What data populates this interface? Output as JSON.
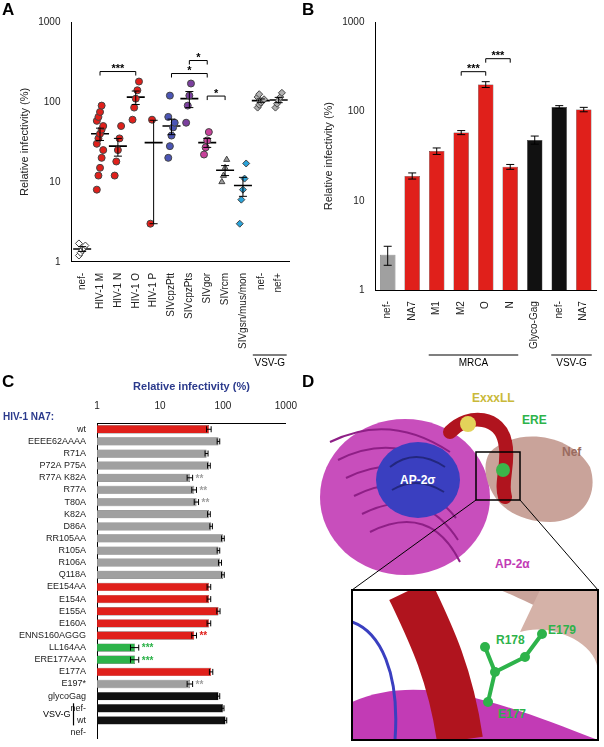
{
  "chart_data": [
    {
      "panel": "A",
      "type": "scatter",
      "ylabel": "Relative infectivity (%)",
      "log": "y",
      "ylim": [
        1,
        1000
      ],
      "yticks": [
        1,
        10,
        100,
        1000
      ],
      "grid": false,
      "categories": [
        "nef-",
        "HIV-1 M",
        "HIV-1 N",
        "HIV-1 O",
        "HIV-1 P",
        "SIVcpzPtt",
        "SIVcpzPts",
        "SIVgor",
        "SIVrcm",
        "SIVgsn/mus/mon",
        "nef-",
        "nef+"
      ],
      "groups": [
        {
          "values": [
            1.2,
            1.3,
            1.4,
            1.5,
            1.6,
            1.7
          ],
          "mean": 1.45,
          "sem": 0.1,
          "color": "#ffffff",
          "marker": "diamond"
        },
        {
          "values": [
            8,
            12,
            15,
            20,
            25,
            30,
            35,
            40,
            45,
            50,
            58,
            65,
            75,
            90
          ],
          "mean": 40,
          "sem": 7,
          "color": "#e0201b",
          "marker": "circle"
        },
        {
          "values": [
            12,
            18,
            25,
            35,
            50
          ],
          "mean": 28,
          "sem": 7,
          "color": "#e0201b",
          "marker": "circle"
        },
        {
          "values": [
            60,
            85,
            110,
            140,
            180
          ],
          "mean": 115,
          "sem": 22,
          "color": "#e0201b",
          "marker": "circle"
        },
        {
          "values": [
            3,
            60
          ],
          "mean": 31,
          "sem": 28,
          "color": "#e0201b",
          "marker": "circle"
        },
        {
          "values": [
            20,
            28,
            38,
            48,
            55,
            65,
            120
          ],
          "mean": 50,
          "sem": 11,
          "color": "#4b55b5",
          "marker": "circle"
        },
        {
          "values": [
            55,
            90,
            120,
            170
          ],
          "mean": 110,
          "sem": 25,
          "color": "#7b3f9e",
          "marker": "circle"
        },
        {
          "values": [
            22,
            27,
            33,
            42
          ],
          "mean": 31,
          "sem": 4,
          "color": "#c8419b",
          "marker": "circle"
        },
        {
          "values": [
            10,
            12,
            15,
            19
          ],
          "mean": 14,
          "sem": 2,
          "color": "#9a9a9a",
          "marker": "triangle"
        },
        {
          "values": [
            3,
            6,
            8,
            11,
            17
          ],
          "mean": 9,
          "sem": 2.4,
          "color": "#2aa3d9",
          "marker": "diamond"
        },
        {
          "values": [
            85,
            92,
            98,
            102,
            108,
            115,
            125
          ],
          "mean": 104,
          "sem": 5,
          "color": "#b0b0b0",
          "marker": "diamond"
        },
        {
          "values": [
            85,
            95,
            105,
            115,
            130
          ],
          "mean": 106,
          "sem": 8,
          "color": "#b0b0b0",
          "marker": "diamond"
        }
      ],
      "group_labels": [
        {
          "text": "VSV-G",
          "from": 10,
          "to": 11
        }
      ],
      "annotations": [
        {
          "text": "***",
          "from": 1,
          "to": 3
        },
        {
          "text": "*",
          "from": 5,
          "to": 7
        },
        {
          "text": "*",
          "from": 6,
          "to": 7
        },
        {
          "text": "*",
          "from": 7,
          "to": 8
        }
      ]
    },
    {
      "panel": "B",
      "type": "bar",
      "ylabel": "Relative infectivity (%)",
      "log": "y",
      "ylim": [
        1,
        1000
      ],
      "yticks": [
        1,
        10,
        100,
        1000
      ],
      "grid": false,
      "categories": [
        "nef-",
        "NA7",
        "M1",
        "M2",
        "O",
        "N",
        "Glyco-Gag",
        "nef-",
        "NA7"
      ],
      "values": [
        2.5,
        19,
        36,
        58,
        200,
        24,
        48,
        112,
        105
      ],
      "sem": [
        0.6,
        1.5,
        3,
        3,
        15,
        1.5,
        5,
        4,
        6
      ],
      "colors": [
        "#a0a0a0",
        "#e0201b",
        "#e0201b",
        "#e0201b",
        "#e0201b",
        "#e0201b",
        "#111111",
        "#111111",
        "#e0201b"
      ],
      "group_labels": [
        {
          "text": "MRCA",
          "from": 2,
          "to": 5
        },
        {
          "text": "VSV-G",
          "from": 7,
          "to": 8
        }
      ],
      "annotations": [
        {
          "text": "***",
          "from": 3,
          "to": 4
        },
        {
          "text": "***",
          "from": 4,
          "to": 5
        }
      ]
    },
    {
      "panel": "C",
      "type": "bar",
      "title": "HIV-1 NA7:",
      "xlabel": "Relative infectivity (%)",
      "log": "x",
      "orientation": "horizontal",
      "xlim": [
        1,
        1000
      ],
      "xticks": [
        1,
        10,
        100,
        1000
      ],
      "grid": false,
      "categories": [
        "wt",
        "EEEE62AAAA",
        "R71A",
        "P72A P75A",
        "R77A K82A",
        "R77A",
        "T80A",
        "K82A",
        "D86A",
        "RR105AA",
        "R105A",
        "R106A",
        "Q118A",
        "EE154AA",
        "E154A",
        "E155A",
        "E160A",
        "ENNS160AGGG",
        "LL164AA",
        "ERE177AAA",
        "E177A",
        "E197*",
        "glycoGag",
        "nef-",
        "wt",
        "nef-"
      ],
      "values": [
        60,
        85,
        55,
        60,
        30,
        35,
        38,
        60,
        65,
        100,
        85,
        90,
        100,
        60,
        60,
        85,
        60,
        35,
        4,
        4,
        65,
        30,
        85,
        100,
        110,
        1
      ],
      "sem": [
        5,
        4,
        3,
        3,
        3,
        3,
        3,
        3,
        3,
        5,
        4,
        5,
        5,
        4,
        4,
        5,
        4,
        3,
        0.6,
        0.6,
        4,
        3,
        4,
        4,
        5,
        0
      ],
      "colors": [
        "#e0201b",
        "#a0a0a0",
        "#a0a0a0",
        "#a0a0a0",
        "#a0a0a0",
        "#a0a0a0",
        "#a0a0a0",
        "#a0a0a0",
        "#a0a0a0",
        "#a0a0a0",
        "#a0a0a0",
        "#a0a0a0",
        "#a0a0a0",
        "#e0201b",
        "#e0201b",
        "#e0201b",
        "#e0201b",
        "#e0201b",
        "#2db34a",
        "#2db34a",
        "#e0201b",
        "#a0a0a0",
        "#111111",
        "#111111",
        "#111111",
        "#111111"
      ],
      "group_labels": [
        {
          "text": "VSV-G",
          "from": 23,
          "to": 24
        }
      ],
      "annotations": [
        {
          "index": 4,
          "text": "**"
        },
        {
          "index": 5,
          "text": "**"
        },
        {
          "index": 6,
          "text": "**"
        },
        {
          "index": 17,
          "text": "**"
        },
        {
          "index": 18,
          "text": "***"
        },
        {
          "index": 19,
          "text": "***"
        },
        {
          "index": 21,
          "text": "**"
        }
      ]
    }
  ],
  "diagram": {
    "panel": "D",
    "labels": {
      "ap2s": "AP-2σ",
      "ap2a": "AP-2α",
      "nef": "Nef",
      "motif1": "ExxxLL",
      "motif2": "ERE"
    },
    "inset_labels": [
      "R178",
      "E177",
      "E179"
    ]
  }
}
